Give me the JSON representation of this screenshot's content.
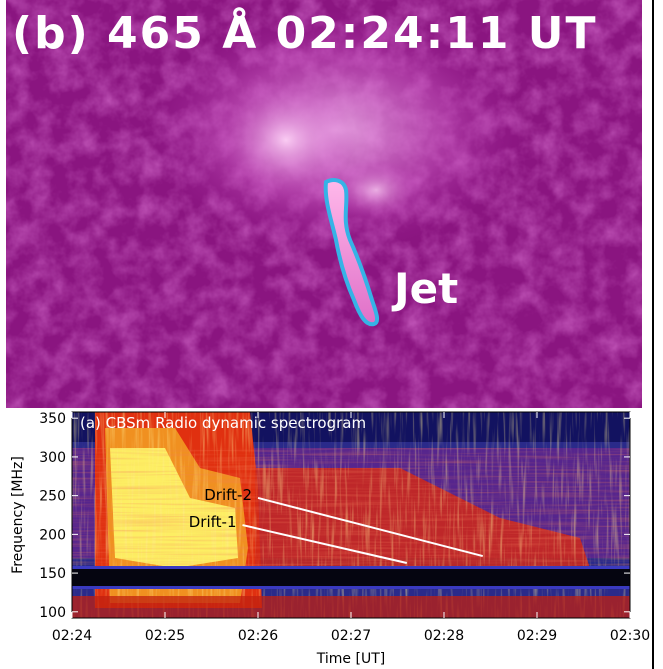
{
  "panel_b": {
    "title": "(b) 465 Å 02:24:11 UT",
    "annotation": "Jet",
    "colors": {
      "contour": "#35b3e6",
      "text": "#ffffff"
    }
  },
  "chart_data": {
    "type": "heatmap",
    "title": "(a) CBSm Radio dynamic spectrogram",
    "xlabel": "Time [UT]",
    "ylabel": "Frequency [MHz]",
    "x_ticks": [
      "02:24",
      "02:25",
      "02:26",
      "02:27",
      "02:28",
      "02:29",
      "02:30"
    ],
    "y_ticks": [
      100,
      150,
      200,
      250,
      300,
      350
    ],
    "xlim": [
      "02:24",
      "02:30"
    ],
    "ylim": [
      92,
      358
    ],
    "annotations": [
      {
        "label": "Drift-2",
        "start": {
          "time": "02:26",
          "freq_mhz": 247
        },
        "end": {
          "time": "02:28:25",
          "freq_mhz": 172
        }
      },
      {
        "label": "Drift-1",
        "start": {
          "time": "02:25:50",
          "freq_mhz": 212
        },
        "end": {
          "time": "02:27:36",
          "freq_mhz": 163
        }
      }
    ],
    "colors": {
      "background": "#2a2a8a",
      "burst_core": "#ffff70",
      "burst_body": "#e03010",
      "interference": "#000000"
    }
  }
}
